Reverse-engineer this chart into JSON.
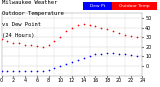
{
  "background_color": "#ffffff",
  "grid_color": "#cccccc",
  "temp_color": "#ff0000",
  "dew_color": "#0000ff",
  "xlim": [
    0,
    24
  ],
  "ylim": [
    -10,
    55
  ],
  "yticks": [
    0,
    10,
    20,
    30,
    40,
    50
  ],
  "ytick_labels": [
    "0",
    "10",
    "20",
    "30",
    "40",
    "50"
  ],
  "xtick_positions": [
    0,
    2,
    4,
    6,
    8,
    10,
    12,
    14,
    16,
    18,
    20,
    22,
    24
  ],
  "xtick_labels": [
    "0",
    "2",
    "4",
    "6",
    "8",
    "10",
    "12",
    "14",
    "16",
    "18",
    "20",
    "22",
    "24"
  ],
  "temp_x": [
    0,
    1,
    2,
    3,
    4,
    5,
    6,
    7,
    8,
    9,
    10,
    11,
    12,
    13,
    14,
    15,
    16,
    17,
    18,
    19,
    20,
    21,
    22,
    23
  ],
  "temp_y": [
    28,
    26,
    24,
    24,
    22,
    22,
    21,
    20,
    22,
    26,
    30,
    36,
    40,
    43,
    44,
    43,
    42,
    40,
    38,
    36,
    34,
    32,
    31,
    30
  ],
  "dew_x": [
    0,
    1,
    2,
    3,
    4,
    5,
    6,
    7,
    8,
    9,
    10,
    11,
    12,
    13,
    14,
    15,
    16,
    17,
    18,
    19,
    20,
    21,
    22,
    23
  ],
  "dew_y": [
    -5,
    -5,
    -5,
    -5,
    -5,
    -5,
    -5,
    -5,
    -4,
    -2,
    0,
    2,
    4,
    6,
    8,
    10,
    12,
    13,
    14,
    14,
    13,
    12,
    11,
    10
  ],
  "vgrid_positions": [
    3,
    6,
    9,
    12,
    15,
    18,
    21
  ],
  "title_line1": "Milwaukee Weather",
  "title_line2": "Outdoor Temperature",
  "title_line3": "vs Dew Point",
  "title_line4": "(24 Hours)",
  "legend_dew_label": "Dew Pt",
  "legend_temp_label": "Outdoor Temp",
  "title_fontsize": 4.0,
  "tick_fontsize": 3.5,
  "dot_size": 1.5
}
